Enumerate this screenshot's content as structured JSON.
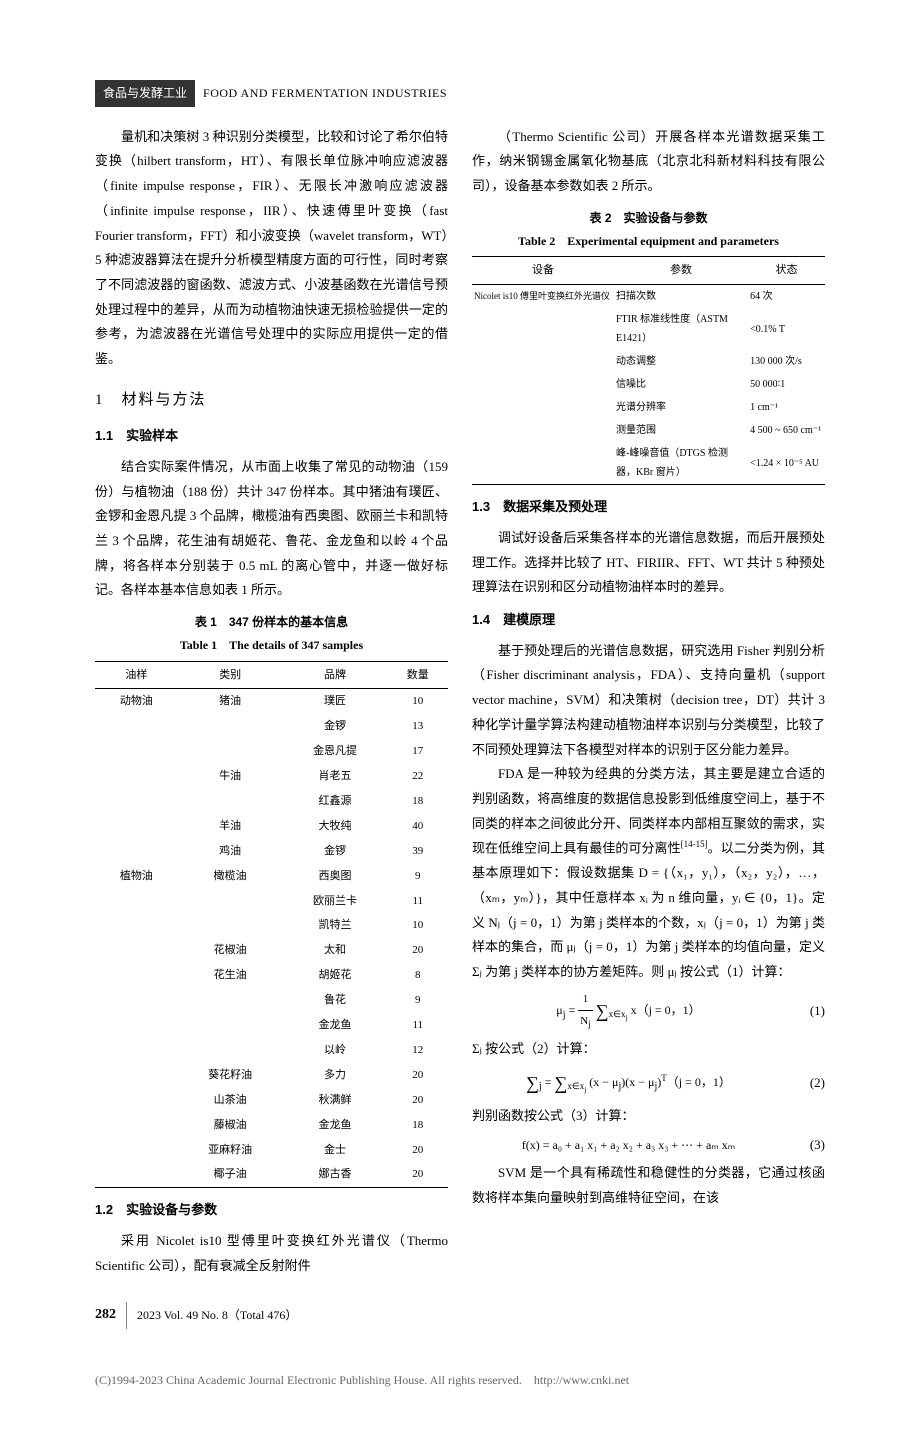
{
  "header": {
    "dark": "食品与发酵工业",
    "light": "FOOD AND FERMENTATION INDUSTRIES"
  },
  "col1": {
    "p1": "量机和决策树 3 种识别分类模型，比较和讨论了希尔伯特变换（hilbert transform，HT）、有限长单位脉冲响应滤波器（finite impulse response，FIR）、无限长冲激响应滤波器（infinite impulse response，IIR）、快速傅里叶变换（fast Fourier transform，FFT）和小波变换（wavelet transform，WT）5 种滤波器算法在提升分析模型精度方面的可行性，同时考察了不同滤波器的窗函数、滤波方式、小波基函数在光谱信号预处理过程中的差异，从而为动植物油快速无损检验提供一定的参考，为滤波器在光谱信号处理中的实际应用提供一定的借鉴。",
    "s1": "1　材料与方法",
    "s11": "1.1　实验样本",
    "p11": "结合实际案件情况，从市面上收集了常见的动物油（159 份）与植物油（188 份）共计 347 份样本。其中猪油有璞匠、金锣和金恩凡提 3 个品牌，橄榄油有西奥图、欧丽兰卡和凯特兰 3 个品牌，花生油有胡姬花、鲁花、金龙鱼和以岭 4 个品牌，将各样本分别装于 0.5 mL 的离心管中，并逐一做好标记。各样本基本信息如表 1 所示。",
    "t1cap_cn": "表 1　347 份样本的基本信息",
    "t1cap_en": "Table 1　The details of 347 samples",
    "t1head": [
      "油样",
      "类别",
      "品牌",
      "数量"
    ],
    "t1rows": [
      [
        "动物油",
        "猪油",
        "璞匠",
        "10"
      ],
      [
        "",
        "",
        "金锣",
        "13"
      ],
      [
        "",
        "",
        "金恩凡提",
        "17"
      ],
      [
        "",
        "牛油",
        "肖老五",
        "22"
      ],
      [
        "",
        "",
        "红鑫源",
        "18"
      ],
      [
        "",
        "羊油",
        "大牧纯",
        "40"
      ],
      [
        "",
        "鸡油",
        "金锣",
        "39"
      ],
      [
        "植物油",
        "橄榄油",
        "西奥图",
        "9"
      ],
      [
        "",
        "",
        "欧丽兰卡",
        "11"
      ],
      [
        "",
        "",
        "凯特兰",
        "10"
      ],
      [
        "",
        "花椒油",
        "太和",
        "20"
      ],
      [
        "",
        "花生油",
        "胡姬花",
        "8"
      ],
      [
        "",
        "",
        "鲁花",
        "9"
      ],
      [
        "",
        "",
        "金龙鱼",
        "11"
      ],
      [
        "",
        "",
        "以岭",
        "12"
      ],
      [
        "",
        "葵花籽油",
        "多力",
        "20"
      ],
      [
        "",
        "山茶油",
        "秋满鲜",
        "20"
      ],
      [
        "",
        "藤椒油",
        "金龙鱼",
        "18"
      ],
      [
        "",
        "亚麻籽油",
        "金士",
        "20"
      ],
      [
        "",
        "椰子油",
        "娜古香",
        "20"
      ]
    ],
    "s12": "1.2　实验设备与参数",
    "p12": "采用 Nicolet is10 型傅里叶变换红外光谱仪（Thermo Scientific 公司），配有衰减全反射附件"
  },
  "col2": {
    "p0": "（Thermo Scientific 公司）开展各样本光谱数据采集工作，纳米钢锡金属氧化物基底（北京北科新材料科技有限公司），设备基本参数如表 2 所示。",
    "t2cap_cn": "表 2　实验设备与参数",
    "t2cap_en": "Table 2　Experimental equipment and parameters",
    "t2head": [
      "设备",
      "参数",
      "状态"
    ],
    "t2rows": [
      [
        "Nicolet is10 傅里叶变换红外光谱仪",
        "扫描次数",
        "64 次"
      ],
      [
        "",
        "FTIR 标准线性度（ASTM E1421）",
        "<0.1% T"
      ],
      [
        "",
        "动态调整",
        "130 000 次/s"
      ],
      [
        "",
        "信噪比",
        "50 000∶1"
      ],
      [
        "",
        "光谱分辨率",
        "1 cm⁻¹"
      ],
      [
        "",
        "测量范围",
        "4 500 ~ 650 cm⁻¹"
      ],
      [
        "",
        "峰-峰噪音值（DTGS 检测器，KBr 窗片）",
        "<1.24 × 10⁻⁵ AU"
      ]
    ],
    "s13": "1.3　数据采集及预处理",
    "p13": "调试好设备后采集各样本的光谱信息数据，而后开展预处理工作。选择并比较了 HT、FIRIIR、FFT、WT 共计 5 种预处理算法在识别和区分动植物油样本时的差异。",
    "s14": "1.4　建模原理",
    "p14a": "基于预处理后的光谱信息数据，研究选用 Fisher 判别分析（Fisher discriminant analysis，FDA）、支持向量机（support vector machine，SVM）和决策树（decision tree，DT）共计 3 种化学计量学算法构建动植物油样本识别与分类模型，比较了不同预处理算法下各模型对样本的识别于区分能力差异。",
    "p14b_a": "FDA 是一种较为经典的分类方法，其主要是建立合适的判别函数，将高维度的数据信息投影到低维度空间上，基于不同类的样本之间彼此分开、同类样本内部相互聚敛的需求，实现在低维空间上具有最佳的可分离性",
    "p14b_ref": "[14-15]",
    "p14b_b": "。以二分类为例，其基本原理如下：假设数据集 D = {（x₁，y₁），（x₂，y₂），…，（xₘ，yₘ）}，其中任意样本 xᵢ 为 n 维向量，yᵢ ∈ {0，1}。定义 Nⱼ（j = 0，1）为第 j 类样本的个数，xⱼ（j = 0，1）为第 j 类样本的集合，而 μⱼ（j = 0，1）为第 j 类样本的均值向量，定义 Σⱼ 为第 j 类样本的协方差矩阵。则 μⱼ 按公式（1）计算：",
    "eq1": "(1)",
    "p14c": "Σⱼ 按公式（2）计算：",
    "eq2": "(2)",
    "p14d": "判别函数按公式（3）计算：",
    "eq3txt": "f(x) = a₀ + a₁ x₁ + a₂ x₂ + a₃ x₃ + ⋯ + aₘ xₘ",
    "eq3": "(3)",
    "p14e": "SVM 是一个具有稀疏性和稳健性的分类器，它通过核函数将样本集向量映射到高维特征空间，在该"
  },
  "footer": {
    "pnum": "282",
    "issue": "2023 Vol. 49 No. 8（Total 476）"
  },
  "copyright": "(C)1994-2023 China Academic Journal Electronic Publishing House. All rights reserved.　http://www.cnki.net"
}
